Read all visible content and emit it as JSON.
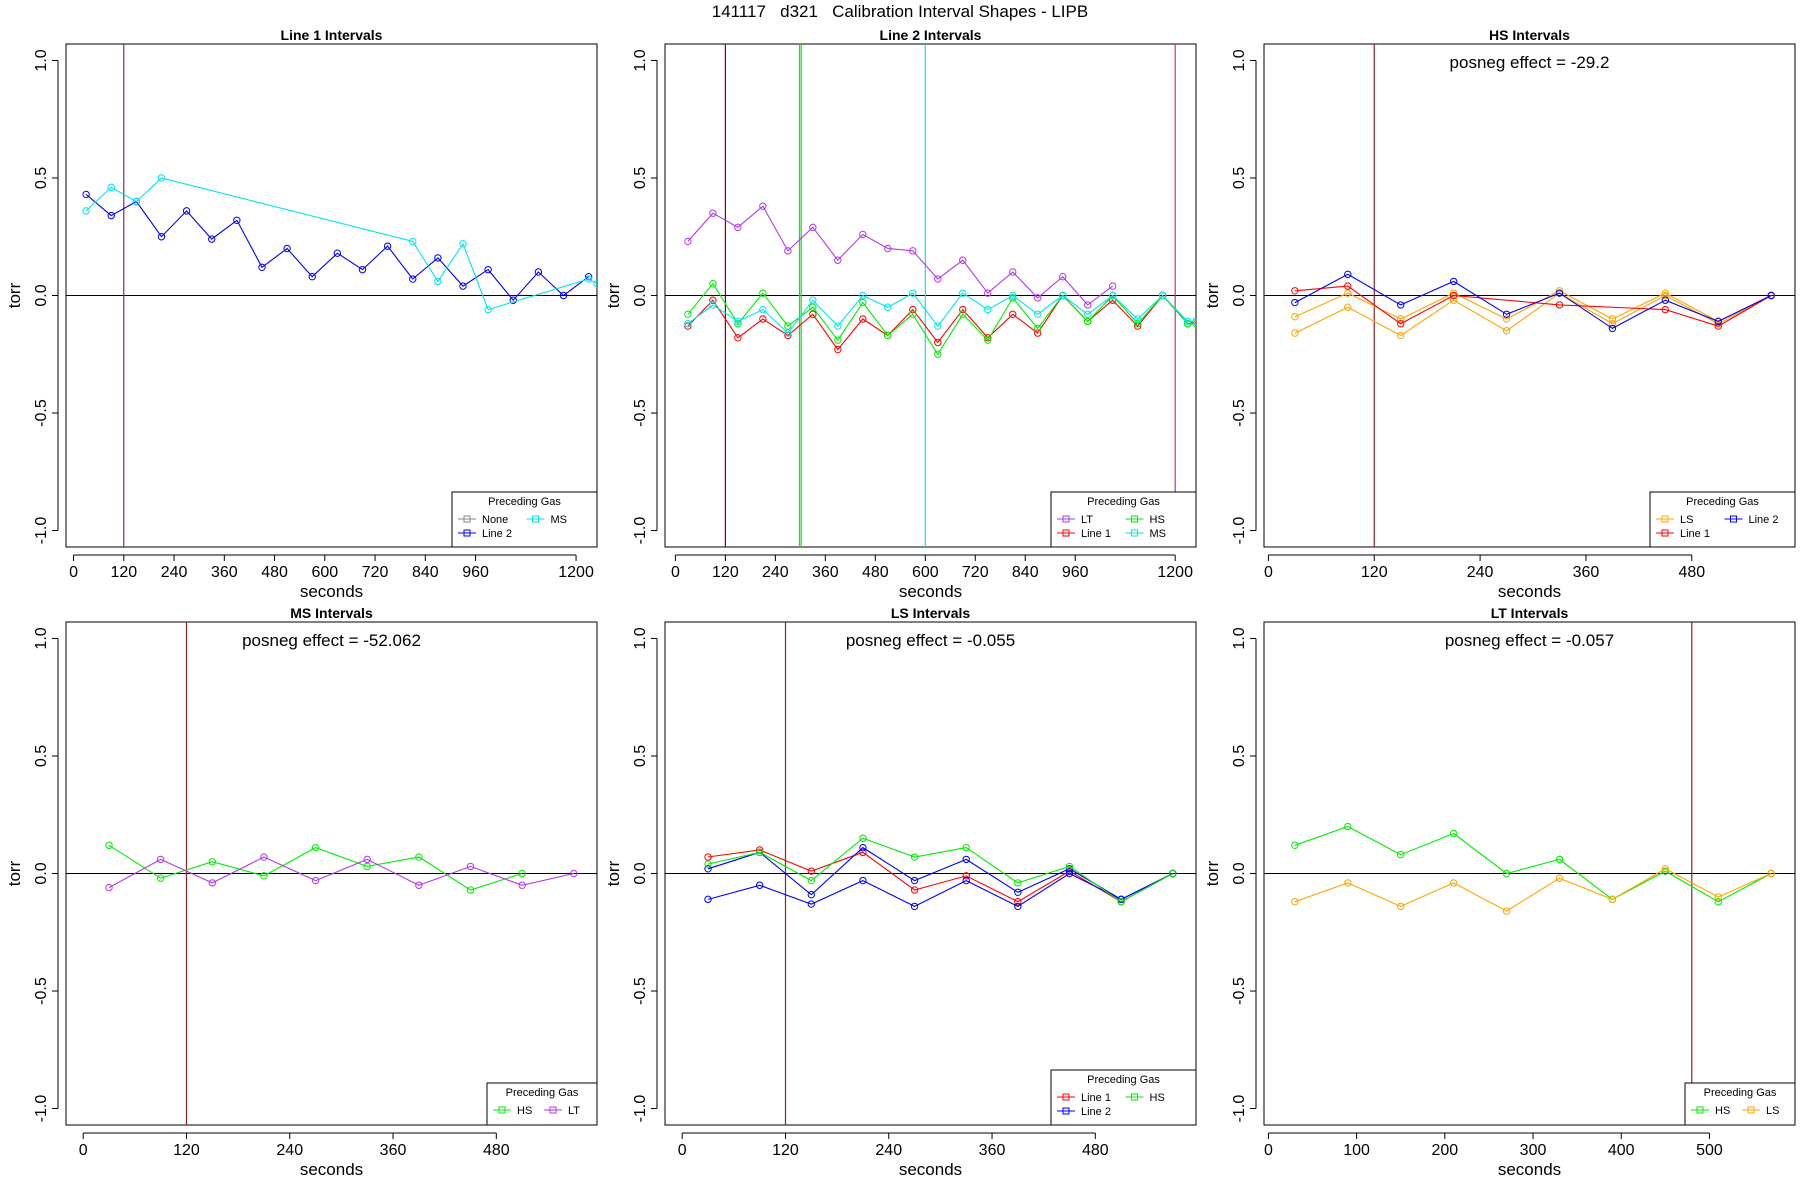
{
  "page": {
    "title": "141117   d321   Calibration Interval Shapes - LIPB"
  },
  "colors": {
    "None": "#888888",
    "Line 1": "#ff0000",
    "Line 2": "#0000ff",
    "HS": "#00ee00",
    "MS": "#00e5ee",
    "LS": "#ffa500",
    "LT": "#b23aee",
    "vline_default": "#8b2323"
  },
  "chart_data": [
    {
      "type": "line",
      "title": "Line 1 Intervals",
      "xlabel": "seconds",
      "ylabel": "torr",
      "xlim": [
        -18,
        1250
      ],
      "ylim": [
        -1.07,
        1.07
      ],
      "xticks": [
        0,
        120,
        240,
        360,
        480,
        600,
        720,
        840,
        960,
        1200
      ],
      "yticks": [
        -1.0,
        -0.5,
        0.0,
        0.5,
        1.0
      ],
      "ytick_labels": [
        "-1.0",
        "-0.5",
        "0.0",
        "0.5",
        "1.0"
      ],
      "hline": 0,
      "vlines": [
        {
          "x": 120,
          "color": "#7b2d6e"
        }
      ],
      "annotation": "",
      "legend": {
        "title": "Preceding Gas",
        "position": "bottom-right",
        "columns": 2,
        "entries": [
          "None",
          "Line 2",
          "MS"
        ]
      },
      "series": [
        {
          "name": "Line 2",
          "x": [
            30,
            90,
            150,
            210,
            270,
            330,
            390,
            450,
            510,
            570,
            630,
            690,
            750,
            810,
            870,
            930,
            990,
            1050,
            1110,
            1170,
            1230
          ],
          "y": [
            0.43,
            0.34,
            0.4,
            0.25,
            0.36,
            0.24,
            0.32,
            0.12,
            0.2,
            0.08,
            0.18,
            0.11,
            0.21,
            0.07,
            0.16,
            0.04,
            0.11,
            -0.02,
            0.1,
            0.0,
            0.08
          ]
        },
        {
          "name": "MS",
          "x": [
            30,
            90,
            150,
            210,
            810,
            870,
            930,
            990,
            1230,
            1250
          ],
          "y": [
            0.36,
            0.46,
            0.4,
            0.5,
            0.23,
            0.06,
            0.22,
            -0.06,
            0.07,
            0.05
          ]
        }
      ]
    },
    {
      "type": "line",
      "title": "Line 2 Intervals",
      "xlabel": "seconds",
      "ylabel": "torr",
      "xlim": [
        -25,
        1250
      ],
      "ylim": [
        -1.07,
        1.07
      ],
      "xticks": [
        0,
        120,
        240,
        360,
        480,
        600,
        720,
        840,
        960,
        1200
      ],
      "yticks": [
        -1.0,
        -0.5,
        0.0,
        0.5,
        1.0
      ],
      "ytick_labels": [
        "-1.0",
        "-0.5",
        "0.0",
        "0.5",
        "1.0"
      ],
      "hline": 0,
      "vlines": [
        {
          "x": 120,
          "color": "#8b0000"
        },
        {
          "x": 298,
          "color": "#00ee00"
        },
        {
          "x": 302,
          "color": "#33cc33"
        },
        {
          "x": 600,
          "color": "#00e5ee"
        },
        {
          "x": 1200,
          "color": "#cd3366"
        }
      ],
      "annotation": "",
      "legend": {
        "title": "Preceding Gas",
        "position": "bottom-right",
        "columns": 2,
        "entries": [
          "LT",
          "Line 1",
          "HS",
          "MS"
        ]
      },
      "series": [
        {
          "name": "LT",
          "x": [
            30,
            90,
            150,
            210,
            270,
            330,
            390,
            450,
            510,
            570,
            630,
            690,
            750,
            810,
            870,
            930,
            990,
            1050
          ],
          "y": [
            0.23,
            0.35,
            0.29,
            0.38,
            0.19,
            0.29,
            0.15,
            0.26,
            0.2,
            0.19,
            0.07,
            0.15,
            0.01,
            0.1,
            -0.01,
            0.08,
            -0.04,
            0.04
          ]
        },
        {
          "name": "Line 1",
          "x": [
            30,
            90,
            150,
            210,
            270,
            330,
            390,
            450,
            510,
            570,
            630,
            690,
            750,
            810,
            870,
            930,
            990,
            1050,
            1110,
            1170,
            1230,
            1250
          ],
          "y": [
            -0.13,
            -0.02,
            -0.18,
            -0.1,
            -0.17,
            -0.08,
            -0.23,
            -0.1,
            -0.17,
            -0.06,
            -0.2,
            -0.06,
            -0.18,
            -0.08,
            -0.16,
            0.0,
            -0.11,
            -0.02,
            -0.13,
            0.0,
            -0.12,
            -0.11
          ]
        },
        {
          "name": "HS",
          "x": [
            30,
            90,
            150,
            210,
            270,
            330,
            390,
            450,
            510,
            570,
            630,
            690,
            750,
            810,
            870,
            930,
            990,
            1050,
            1110,
            1170,
            1230,
            1250
          ],
          "y": [
            -0.08,
            0.05,
            -0.12,
            0.01,
            -0.13,
            -0.05,
            -0.19,
            -0.03,
            -0.17,
            -0.08,
            -0.25,
            -0.08,
            -0.19,
            -0.01,
            -0.14,
            0.0,
            -0.11,
            0.0,
            -0.12,
            0.0,
            -0.12,
            -0.12
          ]
        },
        {
          "name": "MS",
          "x": [
            30,
            90,
            150,
            210,
            270,
            330,
            390,
            450,
            510,
            570,
            630,
            690,
            750,
            810,
            870,
            930,
            990,
            1050,
            1110,
            1170,
            1230,
            1250
          ],
          "y": [
            -0.12,
            -0.04,
            -0.11,
            -0.06,
            -0.16,
            -0.02,
            -0.13,
            0.0,
            -0.05,
            0.01,
            -0.13,
            0.01,
            -0.06,
            0.0,
            -0.08,
            0.0,
            -0.08,
            0.0,
            -0.1,
            0.0,
            -0.11,
            -0.11
          ]
        }
      ]
    },
    {
      "type": "line",
      "title": "HS Intervals",
      "xlabel": "seconds",
      "ylabel": "torr",
      "xlim": [
        -5,
        597
      ],
      "ylim": [
        -1.07,
        1.07
      ],
      "xticks": [
        0,
        120,
        240,
        360,
        480
      ],
      "yticks": [
        -1.0,
        -0.5,
        0.0,
        0.5,
        1.0
      ],
      "ytick_labels": [
        "-1.0",
        "-0.5",
        "0.0",
        "0.5",
        "1.0"
      ],
      "hline": 0,
      "vlines": [
        {
          "x": 120,
          "color": "#8b2323"
        }
      ],
      "annotation": "posneg effect = -29.2",
      "legend": {
        "title": "Preceding Gas",
        "position": "bottom-right",
        "columns": 2,
        "entries": [
          "LS",
          "Line 1",
          "Line 2"
        ]
      },
      "series": [
        {
          "name": "LS",
          "x": [
            30,
            90,
            150,
            210,
            270,
            330,
            390,
            450,
            510,
            570
          ],
          "y": [
            -0.09,
            0.01,
            -0.1,
            0.01,
            -0.1,
            0.02,
            -0.1,
            0.01,
            -0.11,
            0.0
          ]
        },
        {
          "name": "LS",
          "x": [
            30,
            90,
            150,
            210,
            270,
            330,
            390,
            450,
            510,
            570
          ],
          "y": [
            -0.16,
            -0.05,
            -0.17,
            -0.02,
            -0.15,
            0.01,
            -0.12,
            0.0,
            -0.12,
            0.0
          ]
        },
        {
          "name": "Line 1",
          "x": [
            30,
            90,
            150,
            210,
            330,
            450,
            510,
            570
          ],
          "y": [
            0.02,
            0.04,
            -0.12,
            0.0,
            -0.04,
            -0.06,
            -0.13,
            0.0
          ]
        },
        {
          "name": "Line 2",
          "x": [
            30,
            90,
            150,
            210,
            270,
            330,
            390,
            450,
            510,
            570
          ],
          "y": [
            -0.03,
            0.09,
            -0.04,
            0.06,
            -0.08,
            0.01,
            -0.14,
            -0.02,
            -0.11,
            0.0
          ]
        }
      ]
    },
    {
      "type": "line",
      "title": "MS Intervals",
      "xlabel": "seconds",
      "ylabel": "torr",
      "xlim": [
        -20,
        597
      ],
      "ylim": [
        -1.07,
        1.07
      ],
      "xticks": [
        0,
        120,
        240,
        360,
        480
      ],
      "yticks": [
        -1.0,
        -0.5,
        0.0,
        0.5,
        1.0
      ],
      "ytick_labels": [
        "-1.0",
        "-0.5",
        "0.0",
        "0.5",
        "1.0"
      ],
      "hline": 0,
      "vlines": [
        {
          "x": 120,
          "color": "#8b2323"
        }
      ],
      "annotation": "posneg effect = -52.062",
      "legend": {
        "title": "Preceding Gas",
        "position": "bottom-right",
        "columns": 2,
        "entries": [
          "HS",
          "LT"
        ]
      },
      "series": [
        {
          "name": "HS",
          "x": [
            30,
            90,
            150,
            210,
            270,
            330,
            390,
            450,
            510
          ],
          "y": [
            0.12,
            -0.02,
            0.05,
            -0.01,
            0.11,
            0.03,
            0.07,
            -0.07,
            0.0
          ]
        },
        {
          "name": "LT",
          "x": [
            30,
            90,
            150,
            210,
            270,
            330,
            390,
            450,
            510,
            570
          ],
          "y": [
            -0.06,
            0.06,
            -0.04,
            0.07,
            -0.03,
            0.06,
            -0.05,
            0.03,
            -0.05,
            0.0
          ]
        }
      ]
    },
    {
      "type": "line",
      "title": "LS Intervals",
      "xlabel": "seconds",
      "ylabel": "torr",
      "xlim": [
        -20,
        597
      ],
      "ylim": [
        -1.07,
        1.07
      ],
      "xticks": [
        0,
        120,
        240,
        360,
        480
      ],
      "yticks": [
        -1.0,
        -0.5,
        0.0,
        0.5,
        1.0
      ],
      "ytick_labels": [
        "-1.0",
        "-0.5",
        "0.0",
        "0.5",
        "1.0"
      ],
      "hline": 0,
      "vlines": [
        {
          "x": 120,
          "color": "#8b2323"
        }
      ],
      "annotation": "posneg effect = -0.055",
      "legend": {
        "title": "Preceding Gas",
        "position": "bottom-right",
        "columns": 2,
        "entries": [
          "Line 1",
          "Line 2",
          "HS"
        ]
      },
      "series": [
        {
          "name": "Line 1",
          "x": [
            30,
            90,
            150,
            210,
            270,
            330,
            390,
            450,
            510,
            570
          ],
          "y": [
            0.07,
            0.1,
            0.01,
            0.09,
            -0.07,
            -0.01,
            -0.12,
            0.01,
            -0.12,
            0.0
          ]
        },
        {
          "name": "Line 2",
          "x": [
            30,
            90,
            150,
            210,
            270,
            330,
            390,
            450,
            510,
            570
          ],
          "y": [
            -0.11,
            -0.05,
            -0.13,
            -0.03,
            -0.14,
            -0.03,
            -0.14,
            0.0,
            -0.11,
            0.0
          ]
        },
        {
          "name": "Line 2",
          "x": [
            30,
            90,
            150,
            210,
            270,
            330,
            390,
            450,
            510,
            570
          ],
          "y": [
            0.02,
            0.09,
            -0.09,
            0.11,
            -0.03,
            0.06,
            -0.08,
            0.02,
            -0.11,
            0.0
          ]
        },
        {
          "name": "HS",
          "x": [
            30,
            90,
            150,
            210,
            270,
            330,
            390,
            450,
            510,
            570
          ],
          "y": [
            0.04,
            0.09,
            -0.03,
            0.15,
            0.07,
            0.11,
            -0.04,
            0.03,
            -0.12,
            0.0
          ]
        }
      ]
    },
    {
      "type": "line",
      "title": "LT Intervals",
      "xlabel": "seconds",
      "ylabel": "torr",
      "xlim": [
        -5,
        597
      ],
      "ylim": [
        -1.07,
        1.07
      ],
      "xticks": [
        0,
        100,
        200,
        300,
        400,
        500
      ],
      "yticks": [
        -1.0,
        -0.5,
        0.0,
        0.5,
        1.0
      ],
      "ytick_labels": [
        "-1.0",
        "-0.5",
        "0.0",
        "0.5",
        "1.0"
      ],
      "hline": 0,
      "vlines": [
        {
          "x": 480,
          "color": "#8b2323"
        }
      ],
      "annotation": "posneg effect = -0.057",
      "legend": {
        "title": "Preceding Gas",
        "position": "bottom-right",
        "columns": 2,
        "entries": [
          "HS",
          "LS"
        ]
      },
      "series": [
        {
          "name": "HS",
          "x": [
            30,
            90,
            150,
            210,
            270,
            330,
            390,
            450,
            510,
            570
          ],
          "y": [
            0.12,
            0.2,
            0.08,
            0.17,
            0.0,
            0.06,
            -0.11,
            0.01,
            -0.12,
            0.0
          ]
        },
        {
          "name": "LS",
          "x": [
            30,
            90,
            150,
            210,
            270,
            330,
            390,
            450,
            510,
            570
          ],
          "y": [
            -0.12,
            -0.04,
            -0.14,
            -0.04,
            -0.16,
            -0.02,
            -0.11,
            0.02,
            -0.1,
            0.0
          ]
        }
      ]
    }
  ]
}
